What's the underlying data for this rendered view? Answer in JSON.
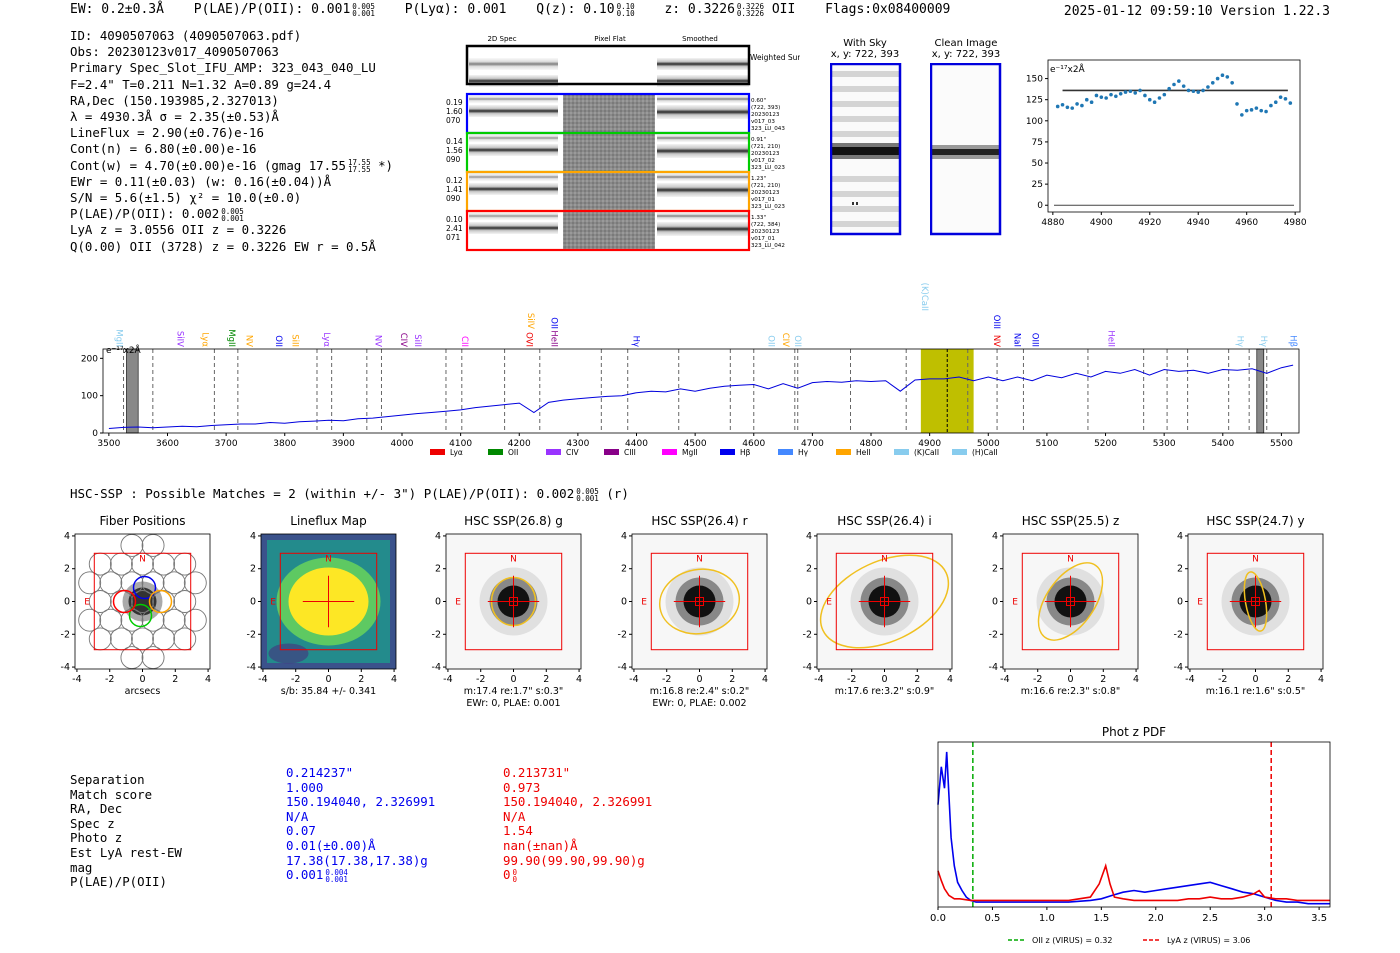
{
  "header": {
    "ew": "EW: 0.2±0.3Å",
    "plae_label": "P(LAE)/P(OII): 0.001",
    "plae_hi": "0.005",
    "plae_lo": "0.001",
    "plya": "P(Lyα): 0.001",
    "qz_label": "Q(z): 0.10",
    "qz_hi": "0.10",
    "qz_lo": "0.10",
    "z_label": "z: 0.3226",
    "z_hi": "0.3226",
    "z_lo": "0.3226",
    "z_line": "OII",
    "flags": "Flags:0x08400009",
    "timestamp": "2025-01-12 09:59:10  Version 1.22.3"
  },
  "info": {
    "id": "ID: 4090507063 (4090507063.pdf)",
    "obs": "Obs: 20230123v017_4090507063",
    "primary": "Primary Spec_Slot_IFU_AMP: 323_043_040_LU",
    "fit": "F=2.4\"  T=0.211  N=1.32  A=0.89  g=24.4",
    "radec": "RA,Dec (150.193985,2.327013)",
    "lambda": "λ = 4930.3Å  σ = 2.35(±0.53)Å",
    "lineflux": "LineFlux = 2.90(±0.76)e-16",
    "contn": "Cont(n) = 6.80(±0.00)e-16",
    "contw": "Cont(w) = 4.70(±0.00)e-16 (gmag 17.55",
    "contw_hi": "17.55",
    "contw_lo": "17.55",
    "contw_end": "*)",
    "ewr": "EWr = 0.11(±0.03) (w: 0.16(±0.04))Å",
    "sn": "S/N = 5.6(±1.5)  χ² = 10.0(±0.0)",
    "plae": "P(LAE)/P(OII): 0.002",
    "plae_hi": "0.005",
    "plae_lo": "0.001",
    "lya": "LyA z = 3.0556  OII z = 0.3226",
    "q": "Q(0.00) OII (3728) z = 0.3226  EW r = 0.5Å"
  },
  "spec2d": {
    "col_titles": [
      "2D Spec",
      "Pixel Flat",
      "Smoothed"
    ],
    "weighted_label": "Weighted Sum",
    "fibers": [
      {
        "color": "#0000ff",
        "left": [
          "0.19",
          "1.60",
          "070"
        ],
        "right": [
          "0.60\"",
          "(722, 393)",
          "20230123",
          "v017_03",
          "323_LU_043"
        ]
      },
      {
        "color": "#00cc00",
        "left": [
          "0.14",
          "1.56",
          "090"
        ],
        "right": [
          "0.91\"",
          "(721, 210)",
          "20230123",
          "v017_02",
          "323_LU_023"
        ]
      },
      {
        "color": "#ffa500",
        "left": [
          "0.12",
          "1.41",
          "090"
        ],
        "right": [
          "1.23\"",
          "(721, 210)",
          "20230123",
          "v017_01",
          "323_LU_023"
        ]
      },
      {
        "color": "#ff0000",
        "left": [
          "0.10",
          "2.41",
          "071"
        ],
        "right": [
          "1.33\"",
          "(722, 384)",
          "20230123",
          "v017_01",
          "323_LU_042"
        ]
      }
    ]
  },
  "cutouts_ccd": {
    "with_sky": "With Sky",
    "with_sky_xy": "x, y: 722, 393",
    "clean": "Clean Image",
    "clean_xy": "x, y: 722, 393"
  },
  "chart_data": [
    {
      "type": "line",
      "name": "line-zoom",
      "title": "",
      "ylabel": "e⁻¹⁷x2Å",
      "xlim": [
        4878,
        4982
      ],
      "ylim": [
        -8,
        172
      ],
      "xticks": [
        4880,
        4900,
        4920,
        4940,
        4960,
        4980
      ],
      "yticks": [
        0,
        25,
        50,
        75,
        100,
        125,
        150
      ],
      "fit_level": 136,
      "x": [
        4882,
        4884,
        4886,
        4888,
        4890,
        4892,
        4894,
        4896,
        4898,
        4900,
        4902,
        4904,
        4906,
        4908,
        4910,
        4912,
        4914,
        4916,
        4918,
        4920,
        4922,
        4924,
        4926,
        4928,
        4930,
        4932,
        4934,
        4936,
        4938,
        4940,
        4942,
        4944,
        4946,
        4948,
        4950,
        4952,
        4954,
        4956,
        4958,
        4960,
        4962,
        4964,
        4966,
        4968,
        4970,
        4972,
        4974,
        4976,
        4978
      ],
      "y": [
        117,
        119,
        116,
        115,
        120,
        118,
        125,
        122,
        130,
        128,
        127,
        131,
        129,
        132,
        134,
        135,
        133,
        136,
        130,
        125,
        122,
        127,
        131,
        138,
        143,
        147,
        141,
        136,
        135,
        134,
        136,
        140,
        145,
        150,
        154,
        152,
        145,
        120,
        107,
        112,
        113,
        115,
        112,
        111,
        118,
        122,
        128,
        126,
        121
      ]
    },
    {
      "type": "line",
      "name": "full-spectrum",
      "ylabel": "e⁻¹⁷x2Å",
      "xlim": [
        3490,
        5530
      ],
      "ylim": [
        0,
        225
      ],
      "xticks": [
        3500,
        3600,
        3700,
        3800,
        3900,
        4000,
        4100,
        4200,
        4300,
        4400,
        4500,
        4600,
        4700,
        4800,
        4900,
        5000,
        5100,
        5200,
        5300,
        5400,
        5500
      ],
      "yticks": [
        0,
        100,
        200
      ],
      "highlight_band": [
        4885,
        4975
      ],
      "highlight_center": 4930,
      "masked_regions": [
        [
          3530,
          3550
        ],
        [
          5458,
          5470
        ]
      ],
      "dashed_lines": [
        3525,
        3575,
        3680,
        3720,
        3855,
        3880,
        3940,
        3965,
        4075,
        4102,
        4175,
        4235,
        4340,
        4385,
        4472,
        4560,
        4600,
        4670,
        4675,
        4765,
        4860,
        4965,
        5015,
        5060,
        5170,
        5265,
        5305,
        5340,
        5410,
        5445,
        5475
      ],
      "x": [
        3500,
        3525,
        3550,
        3575,
        3600,
        3625,
        3650,
        3675,
        3700,
        3725,
        3750,
        3775,
        3800,
        3825,
        3850,
        3875,
        3900,
        3925,
        3950,
        3975,
        4000,
        4025,
        4050,
        4075,
        4100,
        4125,
        4150,
        4175,
        4200,
        4225,
        4250,
        4275,
        4300,
        4325,
        4350,
        4375,
        4400,
        4425,
        4450,
        4475,
        4500,
        4525,
        4550,
        4575,
        4600,
        4625,
        4650,
        4675,
        4700,
        4725,
        4750,
        4775,
        4800,
        4825,
        4850,
        4875,
        4900,
        4925,
        4950,
        4975,
        5000,
        5025,
        5050,
        5075,
        5100,
        5125,
        5150,
        5175,
        5200,
        5225,
        5250,
        5275,
        5300,
        5325,
        5350,
        5375,
        5400,
        5425,
        5450,
        5475,
        5500,
        5520
      ],
      "y": [
        12,
        15,
        16,
        14,
        16,
        18,
        17,
        20,
        22,
        24,
        24,
        28,
        26,
        30,
        32,
        34,
        33,
        38,
        40,
        44,
        48,
        52,
        55,
        58,
        62,
        68,
        72,
        76,
        80,
        55,
        82,
        88,
        92,
        95,
        98,
        100,
        108,
        112,
        110,
        118,
        112,
        120,
        125,
        128,
        130,
        118,
        132,
        120,
        135,
        138,
        136,
        140,
        138,
        140,
        112,
        142,
        145,
        145,
        150,
        140,
        150,
        140,
        150,
        140,
        155,
        148,
        160,
        150,
        165,
        160,
        170,
        155,
        170,
        165,
        168,
        160,
        170,
        168,
        172,
        160,
        175,
        182
      ]
    },
    {
      "type": "line",
      "name": "photz-pdf",
      "title": "Phot z PDF",
      "xlim": [
        0,
        3.6
      ],
      "ylim": [
        0,
        1.0
      ],
      "xticks": [
        0.0,
        0.5,
        1.0,
        1.5,
        2.0,
        2.5,
        3.0,
        3.5
      ],
      "vlines": [
        {
          "x": 0.32,
          "color": "#00aa00"
        },
        {
          "x": 3.06,
          "color": "#ee0000"
        }
      ],
      "series": [
        {
          "name": "blue",
          "color": "#0000ee",
          "x": [
            0.0,
            0.03,
            0.06,
            0.08,
            0.1,
            0.12,
            0.15,
            0.18,
            0.22,
            0.26,
            0.3,
            0.35,
            0.4,
            0.5,
            0.6,
            0.8,
            1.0,
            1.2,
            1.4,
            1.5,
            1.6,
            1.7,
            1.8,
            1.9,
            2.0,
            2.1,
            2.2,
            2.3,
            2.4,
            2.5,
            2.6,
            2.7,
            2.8,
            2.9,
            3.0,
            3.1,
            3.2,
            3.3,
            3.4,
            3.5,
            3.6
          ],
          "y": [
            0.62,
            0.85,
            0.72,
            0.94,
            0.68,
            0.42,
            0.25,
            0.15,
            0.1,
            0.06,
            0.04,
            0.03,
            0.03,
            0.03,
            0.03,
            0.03,
            0.03,
            0.03,
            0.04,
            0.05,
            0.07,
            0.09,
            0.1,
            0.09,
            0.1,
            0.11,
            0.12,
            0.13,
            0.14,
            0.15,
            0.13,
            0.11,
            0.09,
            0.08,
            0.06,
            0.04,
            0.03,
            0.03,
            0.02,
            0.02,
            0.02
          ]
        },
        {
          "name": "red",
          "color": "#ee0000",
          "x": [
            0.0,
            0.03,
            0.06,
            0.1,
            0.15,
            0.2,
            0.3,
            0.4,
            0.6,
            0.8,
            1.0,
            1.2,
            1.4,
            1.48,
            1.54,
            1.58,
            1.62,
            1.7,
            1.8,
            2.0,
            2.2,
            2.3,
            2.4,
            2.5,
            2.6,
            2.7,
            2.8,
            2.9,
            2.95,
            3.0,
            3.1,
            3.2,
            3.3,
            3.4,
            3.5,
            3.6
          ],
          "y": [
            0.22,
            0.16,
            0.11,
            0.07,
            0.05,
            0.05,
            0.04,
            0.04,
            0.04,
            0.04,
            0.04,
            0.04,
            0.06,
            0.14,
            0.25,
            0.14,
            0.06,
            0.05,
            0.04,
            0.04,
            0.04,
            0.05,
            0.05,
            0.06,
            0.05,
            0.05,
            0.06,
            0.08,
            0.1,
            0.06,
            0.05,
            0.05,
            0.04,
            0.04,
            0.04,
            0.04
          ]
        }
      ],
      "legend": [
        {
          "label": "OII z (VIRUS) = 0.32",
          "color": "#00aa00"
        },
        {
          "label": "LyA z (VIRUS) = 3.06",
          "color": "#ee0000"
        }
      ]
    }
  ],
  "spectrum": {
    "ylabel_text": "e⁻¹⁷x2Å",
    "legend": [
      {
        "label": "Lyα",
        "color": "#ee0000"
      },
      {
        "label": "OII",
        "color": "#008800"
      },
      {
        "label": "CIV",
        "color": "#9933ff"
      },
      {
        "label": "CIII",
        "color": "#880088"
      },
      {
        "label": "MgII",
        "color": "#ff00ff"
      },
      {
        "label": "Hβ",
        "color": "#0000ee"
      },
      {
        "label": "Hγ",
        "color": "#4488ff"
      },
      {
        "label": "HeII",
        "color": "#ffa500"
      },
      {
        "label": "(K)CaII",
        "color": "#88ccee"
      },
      {
        "label": "(H)CaII",
        "color": "#88ccee"
      }
    ],
    "lines": [
      {
        "label": "MgII",
        "wl": 3508,
        "color": "#88ccee",
        "tier": 0
      },
      {
        "label": "SiIV",
        "wl": 3612,
        "color": "#9933ff",
        "tier": 0
      },
      {
        "label": "Lyα",
        "wl": 3655,
        "color": "#ffa500",
        "tier": 0
      },
      {
        "label": "MgII",
        "wl": 3700,
        "color": "#008800",
        "tier": 0
      },
      {
        "label": "NV",
        "wl": 3730,
        "color": "#ffa500",
        "tier": 0
      },
      {
        "label": "OII",
        "wl": 3780,
        "color": "#0000ee",
        "tier": 0
      },
      {
        "label": "SiII",
        "wl": 3808,
        "color": "#ffa500",
        "tier": 0
      },
      {
        "label": "Lyα",
        "wl": 3862,
        "color": "#9933ff",
        "tier": 0
      },
      {
        "label": "NV",
        "wl": 3950,
        "color": "#9933ff",
        "tier": 0
      },
      {
        "label": "CIV",
        "wl": 3993,
        "color": "#880088",
        "tier": 0
      },
      {
        "label": "SiII",
        "wl": 4017,
        "color": "#9933ff",
        "tier": 0
      },
      {
        "label": "CII",
        "wl": 4097,
        "color": "#ff00ff",
        "tier": 0
      },
      {
        "label": "OVI",
        "wl": 4207,
        "color": "#ee0000",
        "tier": 0
      },
      {
        "label": "SiIV",
        "wl": 4210,
        "color": "#ffa500",
        "tier": 1
      },
      {
        "label": "OII",
        "wl": 4250,
        "color": "#0000ee",
        "tier": 1
      },
      {
        "label": "HeII",
        "wl": 4250,
        "color": "#880088",
        "tier": 0
      },
      {
        "label": "Hγ",
        "wl": 4390,
        "color": "#0000ee",
        "tier": 0
      },
      {
        "label": "OII",
        "wl": 4620,
        "color": "#88ccee",
        "tier": 0
      },
      {
        "label": "CIV",
        "wl": 4645,
        "color": "#ffa500",
        "tier": 0
      },
      {
        "label": "OII",
        "wl": 4665,
        "color": "#88ccee",
        "tier": 0
      },
      {
        "label": "(K)CaII",
        "wl": 4882,
        "color": "#88ccee",
        "tier": 2
      },
      {
        "label": "OIII",
        "wl": 5005,
        "color": "#0000ee",
        "tier": 1
      },
      {
        "label": "NV",
        "wl": 5005,
        "color": "#ee0000",
        "tier": 0
      },
      {
        "label": "NaI",
        "wl": 5040,
        "color": "#0000ee",
        "tier": 0
      },
      {
        "label": "OIII",
        "wl": 5070,
        "color": "#0000ee",
        "tier": 0
      },
      {
        "label": "HeII",
        "wl": 5200,
        "color": "#9933ff",
        "tier": 0
      },
      {
        "label": "Hγ",
        "wl": 5420,
        "color": "#88ccee",
        "tier": 0
      },
      {
        "label": "Hγ",
        "wl": 5460,
        "color": "#88ccee",
        "tier": 0
      },
      {
        "label": "Hβ",
        "wl": 5510,
        "color": "#4488ff",
        "tier": 0
      }
    ]
  },
  "hsc": {
    "title": "HSC-SSP : Possible Matches = 2 (within +/- 3\")  P(LAE)/P(OII): 0.002",
    "title_hi": "0.005",
    "title_lo": "0.001",
    "title_end": "(r)",
    "north": "N",
    "east": "E",
    "axis_ticks": [
      "-4",
      "-2",
      "0",
      "2",
      "4"
    ],
    "cutouts": [
      {
        "title": "Fiber Positions",
        "kind": "fibers",
        "xlabel": "arcsecs",
        "sub2": ""
      },
      {
        "title": "Lineflux Map",
        "kind": "lineflux",
        "xlabel": "s/b: 35.84 +/- 0.341",
        "sub2": ""
      },
      {
        "title": "HSC SSP(26.8) g",
        "kind": "band",
        "xlabel": "m:17.4  re:1.7\"  s:0.3\"",
        "sub2": "EWr: 0, PLAE: 0.001"
      },
      {
        "title": "HSC SSP(26.4) r",
        "kind": "band",
        "xlabel": "m:16.8  re:2.4\"  s:0.2\"",
        "sub2": "EWr: 0, PLAE: 0.002"
      },
      {
        "title": "HSC SSP(26.4) i",
        "kind": "band",
        "xlabel": "m:17.6  re:3.2\"  s:0.9\"",
        "sub2": ""
      },
      {
        "title": "HSC SSP(25.5) z",
        "kind": "band",
        "xlabel": "m:16.6  re:2.3\"  s:0.8\"",
        "sub2": ""
      },
      {
        "title": "HSC SSP(24.7) y",
        "kind": "band",
        "xlabel": "m:16.1  re:1.6\"  s:0.5\"",
        "sub2": ""
      }
    ]
  },
  "matches": {
    "rows": [
      {
        "label": "Separation",
        "c1": "0.214237\"",
        "c2": "0.213731\""
      },
      {
        "label": "Match score",
        "c1": "1.000",
        "c2": "0.973"
      },
      {
        "label": "RA, Dec",
        "c1": "150.194040, 2.326991",
        "c2": "150.194040, 2.326991"
      },
      {
        "label": "Spec z",
        "c1": "N/A",
        "c2": "N/A"
      },
      {
        "label": "Photo z",
        "c1": "0.07",
        "c2": "1.54"
      },
      {
        "label": "Est LyA rest-EW",
        "c1": "0.01(±0.00)Å",
        "c2": "nan(±nan)Å"
      },
      {
        "label": "mag",
        "c1": "17.38(17.38,17.38)g",
        "c2": "99.90(99.90,99.90)g"
      },
      {
        "label": "P(LAE)/P(OII)",
        "c1": "0.001",
        "c2": "0"
      }
    ],
    "plae_c1_hi": "0.004",
    "plae_c1_lo": "0.001",
    "plae_c2_hi": "0",
    "plae_c2_lo": "0"
  }
}
